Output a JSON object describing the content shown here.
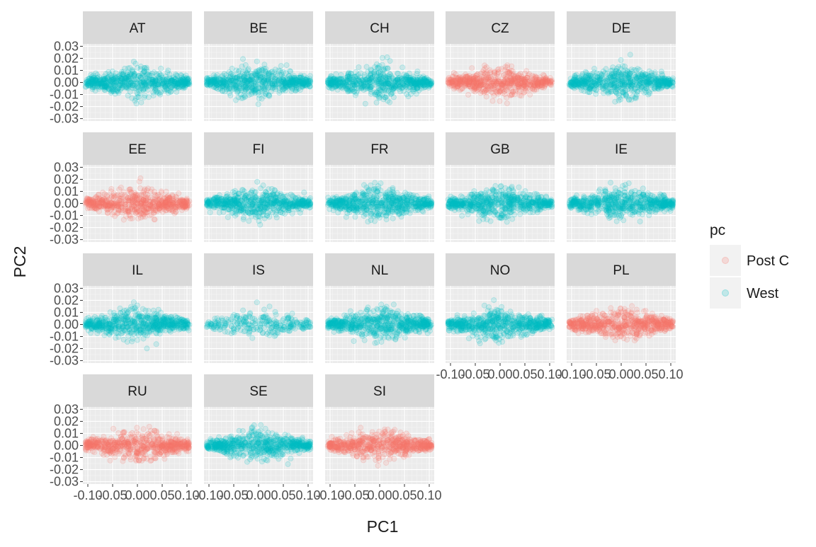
{
  "chart_data": {
    "type": "scatter",
    "layout": "faceted",
    "xlabel": "PC1",
    "ylabel": "PC2",
    "xlim": [
      -0.11,
      0.11
    ],
    "ylim": [
      -0.032,
      0.032
    ],
    "x_ticks": [
      -0.1,
      -0.05,
      0.0,
      0.05,
      0.1
    ],
    "x_tick_labels": [
      "-0.10",
      "-0.05",
      "0.00",
      "0.05",
      "0.10"
    ],
    "y_ticks": [
      -0.03,
      -0.02,
      -0.01,
      0.0,
      0.01,
      0.02,
      0.03
    ],
    "y_tick_labels": [
      "-0.03",
      "-0.02",
      "-0.01",
      "0.00",
      "0.01",
      "0.02",
      "0.03"
    ],
    "grid": true,
    "legend": {
      "title": "pc",
      "position": "right",
      "entries": [
        {
          "label": "Post C",
          "color": "#F8766D"
        },
        {
          "label": "West",
          "color": "#00BFC4"
        }
      ]
    },
    "facets": [
      {
        "label": "AT",
        "group": "West"
      },
      {
        "label": "BE",
        "group": "West"
      },
      {
        "label": "CH",
        "group": "West"
      },
      {
        "label": "CZ",
        "group": "Post C"
      },
      {
        "label": "DE",
        "group": "West"
      },
      {
        "label": "EE",
        "group": "Post C"
      },
      {
        "label": "FI",
        "group": "West"
      },
      {
        "label": "FR",
        "group": "West"
      },
      {
        "label": "GB",
        "group": "West"
      },
      {
        "label": "IE",
        "group": "West"
      },
      {
        "label": "IL",
        "group": "West"
      },
      {
        "label": "IS",
        "group": "West"
      },
      {
        "label": "NL",
        "group": "West"
      },
      {
        "label": "NO",
        "group": "West"
      },
      {
        "label": "PL",
        "group": "Post C"
      },
      {
        "label": "RU",
        "group": "Post C"
      },
      {
        "label": "SE",
        "group": "West"
      },
      {
        "label": "SI",
        "group": "Post C"
      }
    ],
    "point_cloud": {
      "x_range": [
        -0.105,
        0.105
      ],
      "y_center": 0.0,
      "y_spread": 0.012,
      "opacity": 0.15
    }
  },
  "colors": {
    "panel_background": "#EBEBEB",
    "grid_major": "#FFFFFF",
    "strip_background": "#D9D9D9",
    "text": "#1A1A1A",
    "axis_text": "#4D4D4D"
  }
}
